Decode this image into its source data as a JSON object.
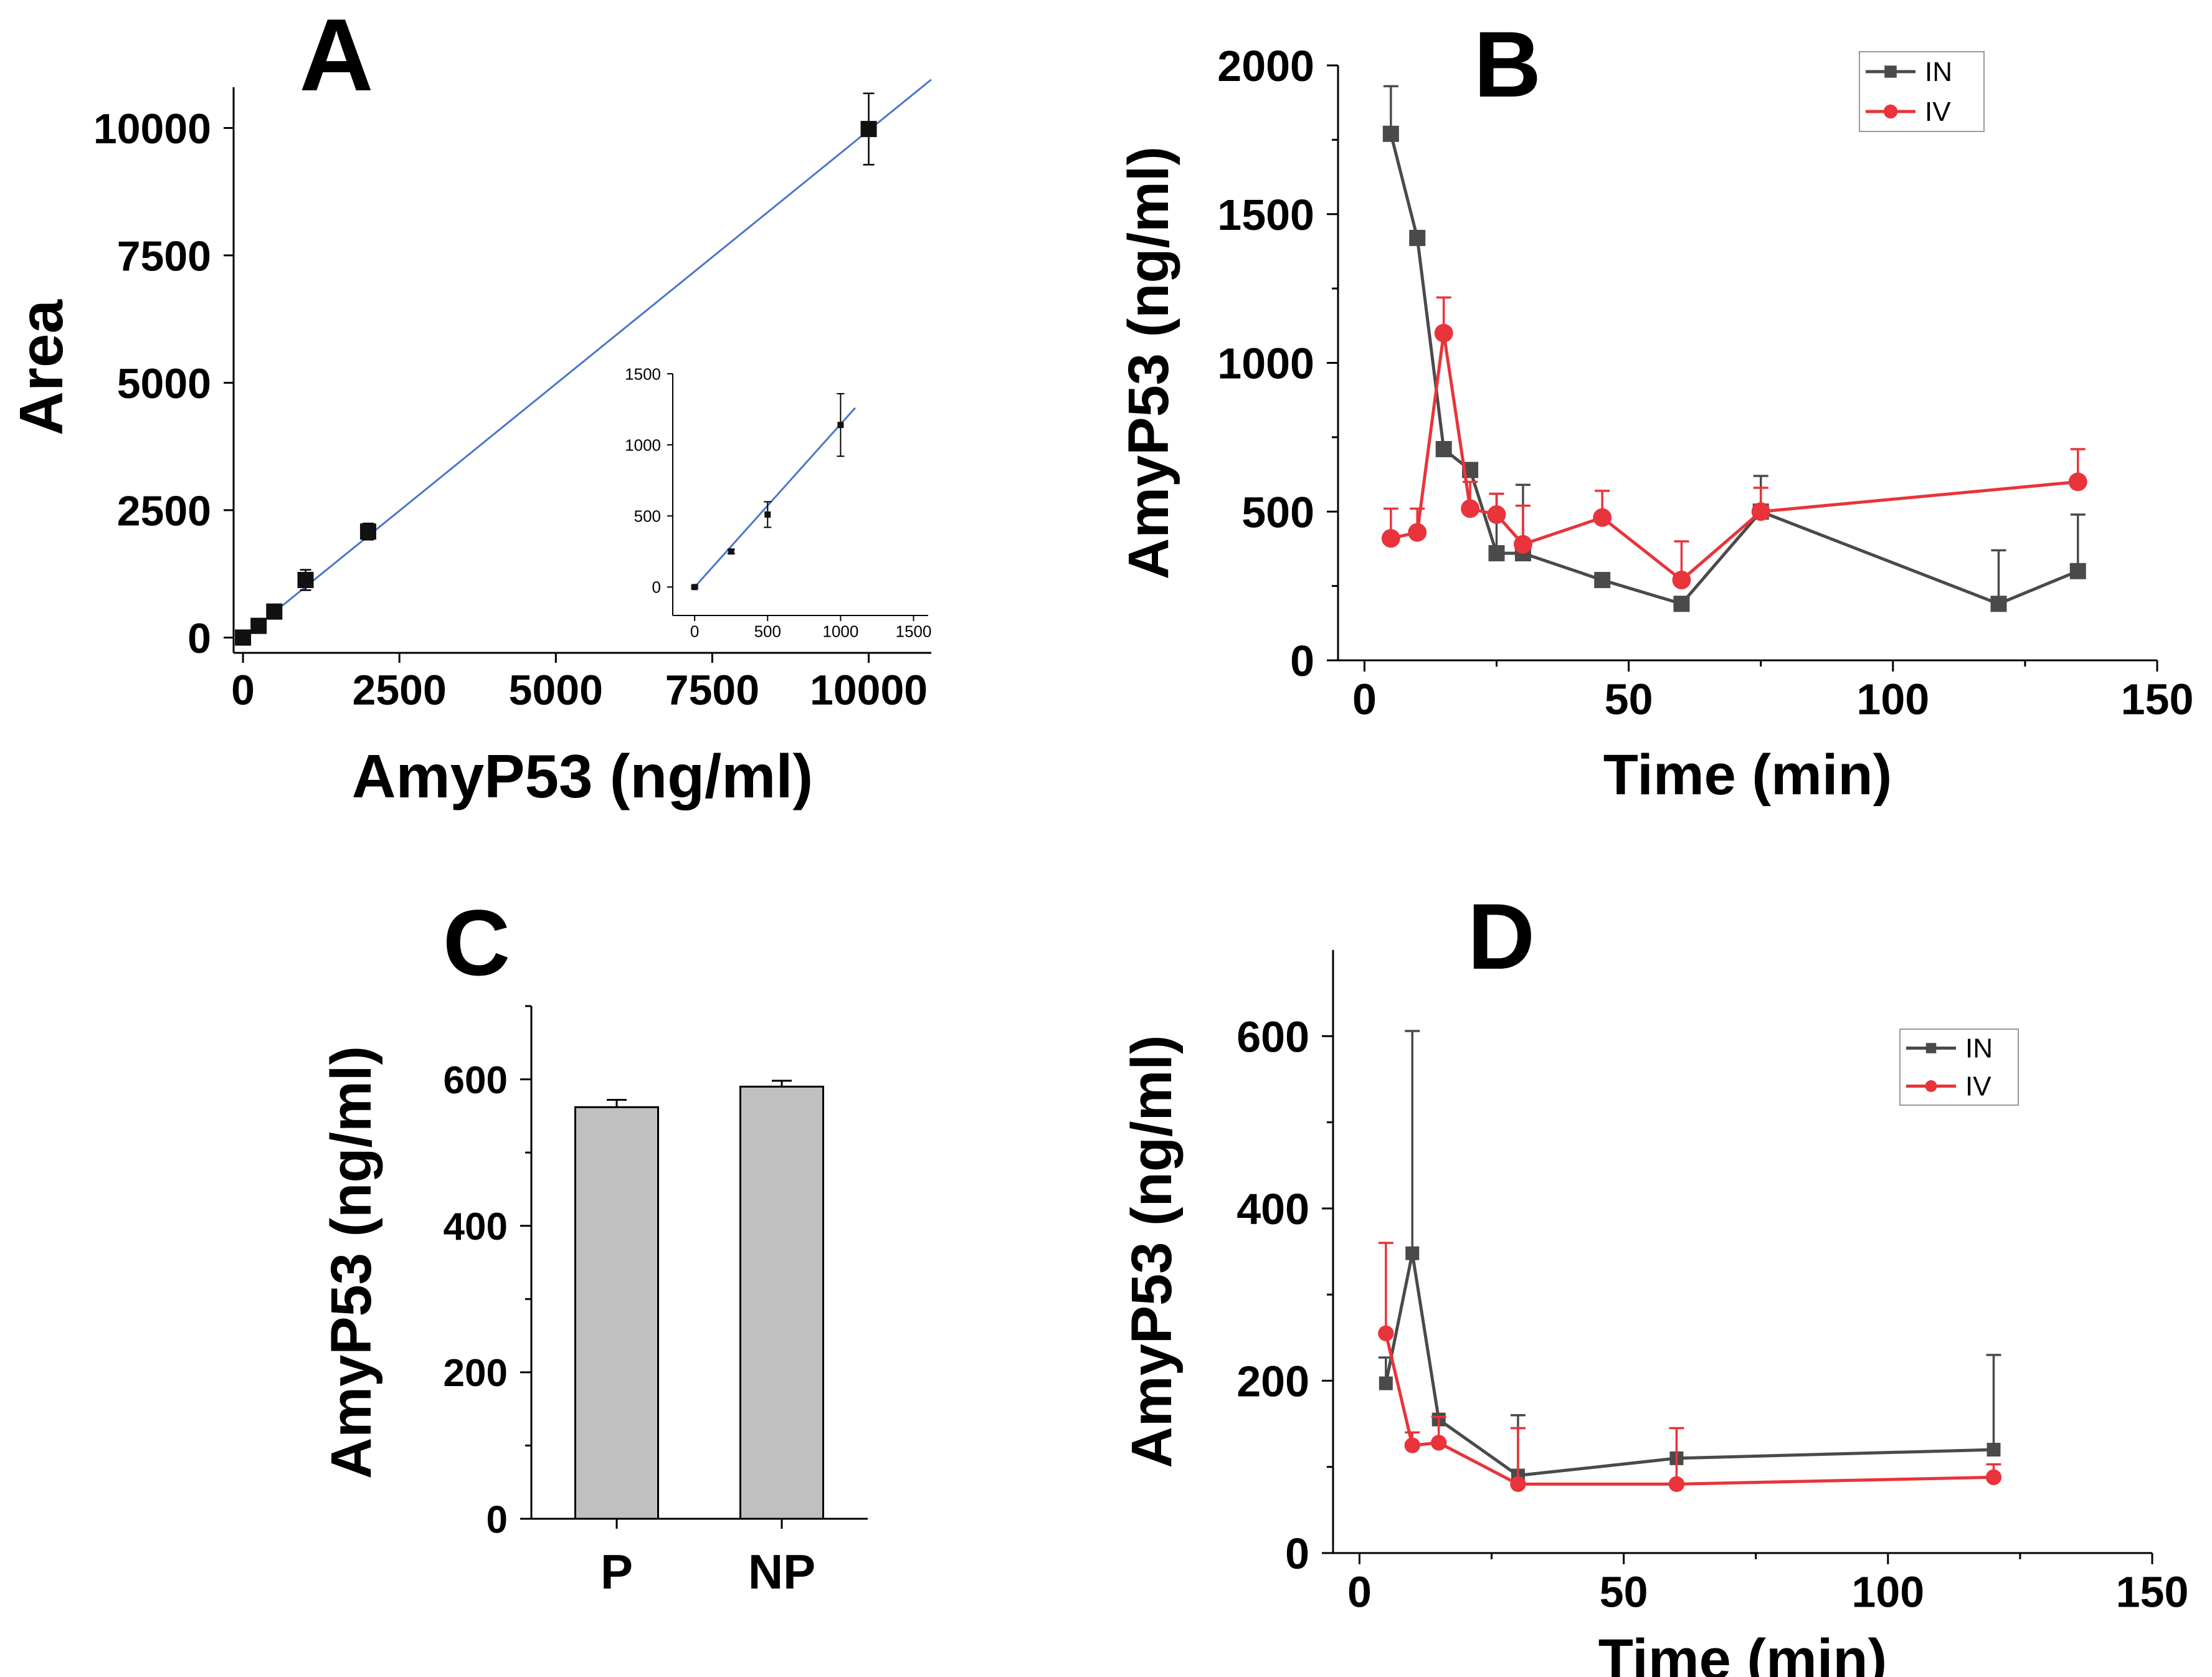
{
  "chart_data": [
    {
      "panel": "A",
      "type": "scatter",
      "title": "",
      "xlabel": "AmyP53 (ng/ml)",
      "ylabel": "Area",
      "xlim": [
        -150,
        11000
      ],
      "ylim": [
        -300,
        10800
      ],
      "xticks": [
        0,
        2500,
        5000,
        7500,
        10000
      ],
      "yticks": [
        0,
        2500,
        5000,
        7500,
        10000
      ],
      "x": [
        0,
        250,
        500,
        1000,
        2000,
        10000
      ],
      "y": [
        0,
        230,
        510,
        1130,
        2080,
        9980
      ],
      "err": [
        25,
        40,
        80,
        200,
        160,
        700
      ],
      "fit": {
        "x": [
          0,
          11000
        ],
        "y": [
          0,
          10950
        ],
        "color": "#4a77c9"
      },
      "inset": {
        "xlim": [
          -150,
          1600
        ],
        "ylim": [
          -200,
          1500
        ],
        "xticks": [
          0,
          500,
          1000,
          1500
        ],
        "yticks": [
          0,
          500,
          1000,
          1500
        ],
        "x": [
          0,
          250,
          500,
          1000
        ],
        "y": [
          0,
          250,
          510,
          1140
        ],
        "err": [
          8,
          15,
          90,
          220
        ],
        "fit": {
          "x": [
            0,
            1100
          ],
          "y": [
            0,
            1260
          ]
        }
      }
    },
    {
      "panel": "B",
      "type": "line",
      "xlabel": "Time (min)",
      "ylabel": "AmyP53 (ng/ml)",
      "xlim": [
        -5,
        150
      ],
      "ylim": [
        0,
        2000
      ],
      "xticks": [
        0,
        50,
        100,
        150
      ],
      "yticks": [
        0,
        500,
        1000,
        1500,
        2000
      ],
      "legend_position": "top-right",
      "series": [
        {
          "name": "IN",
          "color": "#4a4a4a",
          "marker": "square",
          "x": [
            5,
            10,
            15,
            20,
            25,
            30,
            45,
            60,
            75,
            120,
            135
          ],
          "y": [
            1770,
            1420,
            710,
            640,
            360,
            360,
            270,
            190,
            500,
            190,
            300
          ],
          "err": [
            160,
            0,
            0,
            0,
            200,
            230,
            0,
            0,
            120,
            180,
            190
          ]
        },
        {
          "name": "IV",
          "color": "#e8343a",
          "marker": "circle",
          "x": [
            5,
            10,
            15,
            20,
            25,
            30,
            45,
            60,
            75,
            135
          ],
          "y": [
            410,
            430,
            1100,
            510,
            490,
            390,
            480,
            270,
            500,
            600
          ],
          "err": [
            100,
            80,
            120,
            90,
            70,
            130,
            90,
            130,
            80,
            110
          ]
        }
      ]
    },
    {
      "panel": "C",
      "type": "bar",
      "xlabel": "",
      "ylabel": "AmyP53 (ng/ml)",
      "ylim": [
        0,
        700
      ],
      "yticks": [
        0,
        200,
        400,
        600
      ],
      "categories": [
        "P",
        "NP"
      ],
      "values": [
        562,
        590
      ],
      "err": [
        10,
        8
      ],
      "color": "#c0c0c0"
    },
    {
      "panel": "D",
      "type": "line",
      "xlabel": "Time (min)",
      "ylabel": "AmyP53 (ng/ml)",
      "xlim": [
        -5,
        150
      ],
      "ylim": [
        0,
        700
      ],
      "xticks": [
        0,
        50,
        100,
        150
      ],
      "yticks": [
        0,
        200,
        400,
        600
      ],
      "legend_position": "top-right",
      "series": [
        {
          "name": "IN",
          "color": "#4a4a4a",
          "marker": "square",
          "x": [
            5,
            10,
            15,
            30,
            60,
            120
          ],
          "y": [
            197,
            348,
            155,
            90,
            110,
            120
          ],
          "err": [
            30,
            258,
            0,
            70,
            0,
            110
          ]
        },
        {
          "name": "IV",
          "color": "#e8343a",
          "marker": "circle",
          "x": [
            5,
            10,
            15,
            30,
            60,
            120
          ],
          "y": [
            255,
            125,
            128,
            80,
            80,
            88
          ],
          "err": [
            105,
            15,
            30,
            65,
            65,
            15
          ]
        }
      ]
    }
  ]
}
